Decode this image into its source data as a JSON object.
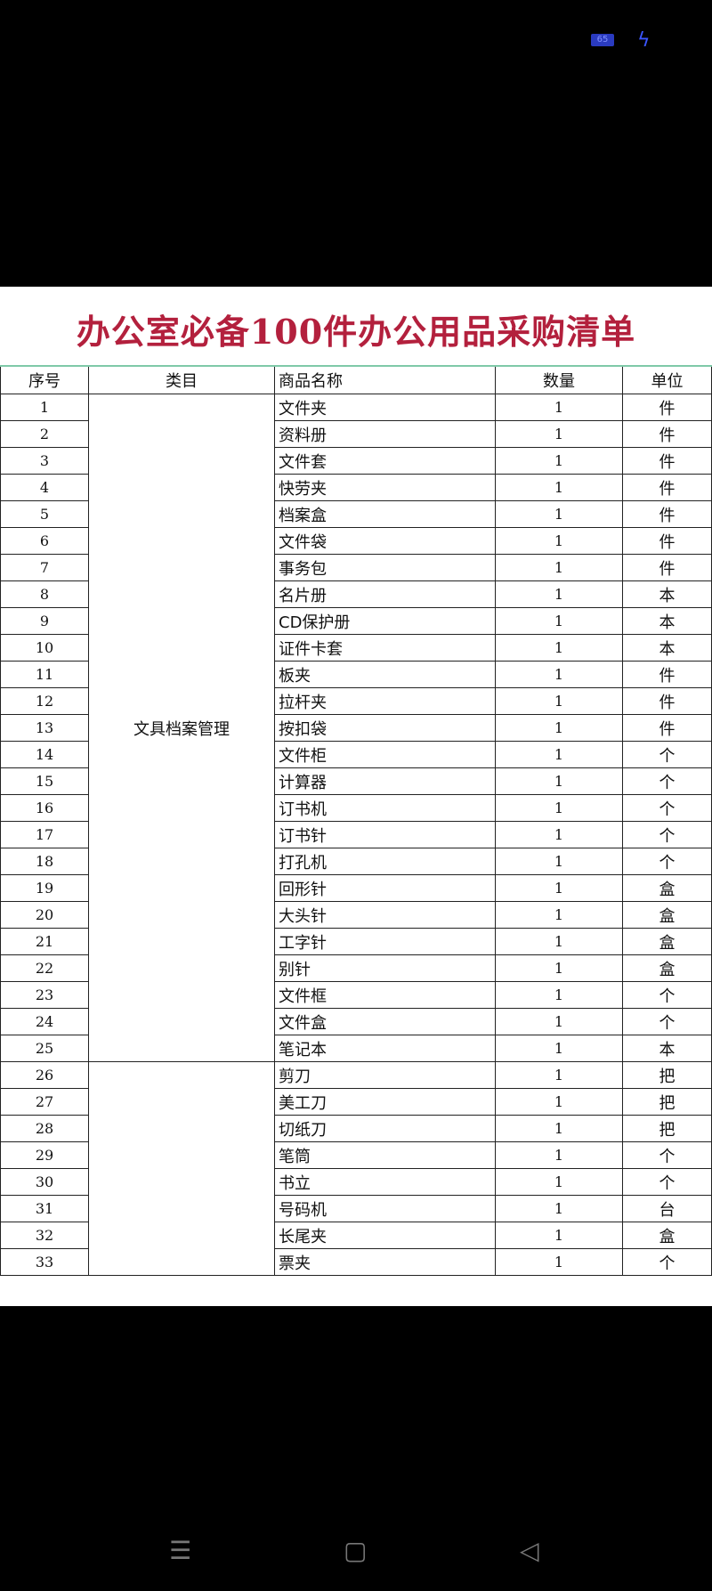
{
  "status_bar": {
    "battery": "65",
    "charging_icon": "bolt-icon"
  },
  "document": {
    "title": "办公室必备100件办公用品采购清单",
    "title_color": "#b3203d",
    "columns": [
      "序号",
      "类目",
      "商品名称",
      "数量",
      "单位"
    ],
    "categories": [
      {
        "name": "文具档案管理",
        "first": 1,
        "last": 25
      },
      {
        "name": "",
        "first": 26,
        "last": 33
      }
    ],
    "rows": [
      {
        "no": "1",
        "name": "文件夹",
        "qty": "1",
        "unit": "件"
      },
      {
        "no": "2",
        "name": "资料册",
        "qty": "1",
        "unit": "件"
      },
      {
        "no": "3",
        "name": "文件套",
        "qty": "1",
        "unit": "件"
      },
      {
        "no": "4",
        "name": "快劳夹",
        "qty": "1",
        "unit": "件"
      },
      {
        "no": "5",
        "name": "档案盒",
        "qty": "1",
        "unit": "件"
      },
      {
        "no": "6",
        "name": "文件袋",
        "qty": "1",
        "unit": "件"
      },
      {
        "no": "7",
        "name": "事务包",
        "qty": "1",
        "unit": "件"
      },
      {
        "no": "8",
        "name": "名片册",
        "qty": "1",
        "unit": "本"
      },
      {
        "no": "9",
        "name": "CD保护册",
        "qty": "1",
        "unit": "本"
      },
      {
        "no": "10",
        "name": "证件卡套",
        "qty": "1",
        "unit": "本"
      },
      {
        "no": "11",
        "name": "板夹",
        "qty": "1",
        "unit": "件"
      },
      {
        "no": "12",
        "name": "拉杆夹",
        "qty": "1",
        "unit": "件"
      },
      {
        "no": "13",
        "name": "按扣袋",
        "qty": "1",
        "unit": "件"
      },
      {
        "no": "14",
        "name": "文件柜",
        "qty": "1",
        "unit": "个"
      },
      {
        "no": "15",
        "name": "计算器",
        "qty": "1",
        "unit": "个"
      },
      {
        "no": "16",
        "name": "订书机",
        "qty": "1",
        "unit": "个"
      },
      {
        "no": "17",
        "name": "订书针",
        "qty": "1",
        "unit": "个"
      },
      {
        "no": "18",
        "name": "打孔机",
        "qty": "1",
        "unit": "个"
      },
      {
        "no": "19",
        "name": "回形针",
        "qty": "1",
        "unit": "盒"
      },
      {
        "no": "20",
        "name": "大头针",
        "qty": "1",
        "unit": "盒"
      },
      {
        "no": "21",
        "name": "工字针",
        "qty": "1",
        "unit": "盒"
      },
      {
        "no": "22",
        "name": "别针",
        "qty": "1",
        "unit": "盒"
      },
      {
        "no": "23",
        "name": "文件框",
        "qty": "1",
        "unit": "个"
      },
      {
        "no": "24",
        "name": "文件盒",
        "qty": "1",
        "unit": "个"
      },
      {
        "no": "25",
        "name": "笔记本",
        "qty": "1",
        "unit": "本"
      },
      {
        "no": "26",
        "name": "剪刀",
        "qty": "1",
        "unit": "把"
      },
      {
        "no": "27",
        "name": "美工刀",
        "qty": "1",
        "unit": "把"
      },
      {
        "no": "28",
        "name": "切纸刀",
        "qty": "1",
        "unit": "把"
      },
      {
        "no": "29",
        "name": "笔筒",
        "qty": "1",
        "unit": "个"
      },
      {
        "no": "30",
        "name": "书立",
        "qty": "1",
        "unit": "个"
      },
      {
        "no": "31",
        "name": "号码机",
        "qty": "1",
        "unit": "台"
      },
      {
        "no": "32",
        "name": "长尾夹",
        "qty": "1",
        "unit": "盒"
      },
      {
        "no": "33",
        "name": "票夹",
        "qty": "1",
        "unit": "个"
      }
    ]
  },
  "nav_bar": {
    "menu_icon": "☰",
    "home_icon": "▢",
    "back_icon": "◁"
  }
}
